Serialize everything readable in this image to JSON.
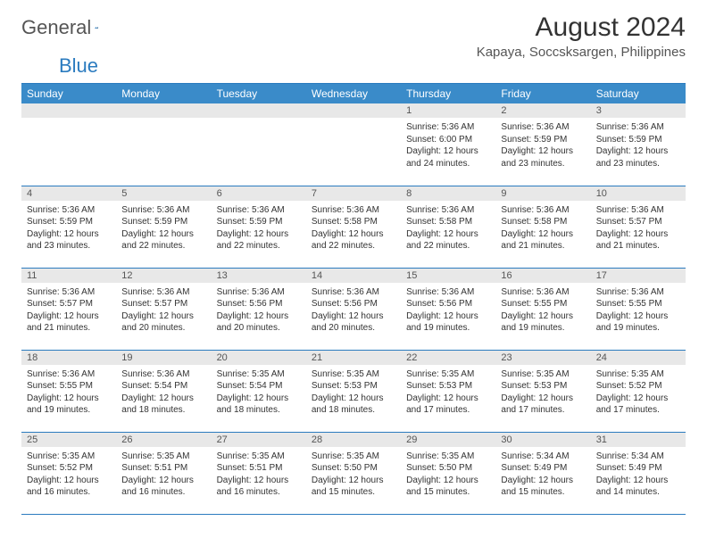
{
  "logo": {
    "text1": "General",
    "text2": "Blue"
  },
  "title": "August 2024",
  "location": "Kapaya, Soccsksargen, Philippines",
  "colors": {
    "header_bg": "#3a8bc9",
    "border": "#2b7bbf",
    "daynum_bg": "#e8e8e8",
    "text": "#333333"
  },
  "weekdays": [
    "Sunday",
    "Monday",
    "Tuesday",
    "Wednesday",
    "Thursday",
    "Friday",
    "Saturday"
  ],
  "weeks": [
    [
      null,
      null,
      null,
      null,
      {
        "n": "1",
        "sr": "Sunrise: 5:36 AM",
        "ss": "Sunset: 6:00 PM",
        "dl": "Daylight: 12 hours and 24 minutes."
      },
      {
        "n": "2",
        "sr": "Sunrise: 5:36 AM",
        "ss": "Sunset: 5:59 PM",
        "dl": "Daylight: 12 hours and 23 minutes."
      },
      {
        "n": "3",
        "sr": "Sunrise: 5:36 AM",
        "ss": "Sunset: 5:59 PM",
        "dl": "Daylight: 12 hours and 23 minutes."
      }
    ],
    [
      {
        "n": "4",
        "sr": "Sunrise: 5:36 AM",
        "ss": "Sunset: 5:59 PM",
        "dl": "Daylight: 12 hours and 23 minutes."
      },
      {
        "n": "5",
        "sr": "Sunrise: 5:36 AM",
        "ss": "Sunset: 5:59 PM",
        "dl": "Daylight: 12 hours and 22 minutes."
      },
      {
        "n": "6",
        "sr": "Sunrise: 5:36 AM",
        "ss": "Sunset: 5:59 PM",
        "dl": "Daylight: 12 hours and 22 minutes."
      },
      {
        "n": "7",
        "sr": "Sunrise: 5:36 AM",
        "ss": "Sunset: 5:58 PM",
        "dl": "Daylight: 12 hours and 22 minutes."
      },
      {
        "n": "8",
        "sr": "Sunrise: 5:36 AM",
        "ss": "Sunset: 5:58 PM",
        "dl": "Daylight: 12 hours and 22 minutes."
      },
      {
        "n": "9",
        "sr": "Sunrise: 5:36 AM",
        "ss": "Sunset: 5:58 PM",
        "dl": "Daylight: 12 hours and 21 minutes."
      },
      {
        "n": "10",
        "sr": "Sunrise: 5:36 AM",
        "ss": "Sunset: 5:57 PM",
        "dl": "Daylight: 12 hours and 21 minutes."
      }
    ],
    [
      {
        "n": "11",
        "sr": "Sunrise: 5:36 AM",
        "ss": "Sunset: 5:57 PM",
        "dl": "Daylight: 12 hours and 21 minutes."
      },
      {
        "n": "12",
        "sr": "Sunrise: 5:36 AM",
        "ss": "Sunset: 5:57 PM",
        "dl": "Daylight: 12 hours and 20 minutes."
      },
      {
        "n": "13",
        "sr": "Sunrise: 5:36 AM",
        "ss": "Sunset: 5:56 PM",
        "dl": "Daylight: 12 hours and 20 minutes."
      },
      {
        "n": "14",
        "sr": "Sunrise: 5:36 AM",
        "ss": "Sunset: 5:56 PM",
        "dl": "Daylight: 12 hours and 20 minutes."
      },
      {
        "n": "15",
        "sr": "Sunrise: 5:36 AM",
        "ss": "Sunset: 5:56 PM",
        "dl": "Daylight: 12 hours and 19 minutes."
      },
      {
        "n": "16",
        "sr": "Sunrise: 5:36 AM",
        "ss": "Sunset: 5:55 PM",
        "dl": "Daylight: 12 hours and 19 minutes."
      },
      {
        "n": "17",
        "sr": "Sunrise: 5:36 AM",
        "ss": "Sunset: 5:55 PM",
        "dl": "Daylight: 12 hours and 19 minutes."
      }
    ],
    [
      {
        "n": "18",
        "sr": "Sunrise: 5:36 AM",
        "ss": "Sunset: 5:55 PM",
        "dl": "Daylight: 12 hours and 19 minutes."
      },
      {
        "n": "19",
        "sr": "Sunrise: 5:36 AM",
        "ss": "Sunset: 5:54 PM",
        "dl": "Daylight: 12 hours and 18 minutes."
      },
      {
        "n": "20",
        "sr": "Sunrise: 5:35 AM",
        "ss": "Sunset: 5:54 PM",
        "dl": "Daylight: 12 hours and 18 minutes."
      },
      {
        "n": "21",
        "sr": "Sunrise: 5:35 AM",
        "ss": "Sunset: 5:53 PM",
        "dl": "Daylight: 12 hours and 18 minutes."
      },
      {
        "n": "22",
        "sr": "Sunrise: 5:35 AM",
        "ss": "Sunset: 5:53 PM",
        "dl": "Daylight: 12 hours and 17 minutes."
      },
      {
        "n": "23",
        "sr": "Sunrise: 5:35 AM",
        "ss": "Sunset: 5:53 PM",
        "dl": "Daylight: 12 hours and 17 minutes."
      },
      {
        "n": "24",
        "sr": "Sunrise: 5:35 AM",
        "ss": "Sunset: 5:52 PM",
        "dl": "Daylight: 12 hours and 17 minutes."
      }
    ],
    [
      {
        "n": "25",
        "sr": "Sunrise: 5:35 AM",
        "ss": "Sunset: 5:52 PM",
        "dl": "Daylight: 12 hours and 16 minutes."
      },
      {
        "n": "26",
        "sr": "Sunrise: 5:35 AM",
        "ss": "Sunset: 5:51 PM",
        "dl": "Daylight: 12 hours and 16 minutes."
      },
      {
        "n": "27",
        "sr": "Sunrise: 5:35 AM",
        "ss": "Sunset: 5:51 PM",
        "dl": "Daylight: 12 hours and 16 minutes."
      },
      {
        "n": "28",
        "sr": "Sunrise: 5:35 AM",
        "ss": "Sunset: 5:50 PM",
        "dl": "Daylight: 12 hours and 15 minutes."
      },
      {
        "n": "29",
        "sr": "Sunrise: 5:35 AM",
        "ss": "Sunset: 5:50 PM",
        "dl": "Daylight: 12 hours and 15 minutes."
      },
      {
        "n": "30",
        "sr": "Sunrise: 5:34 AM",
        "ss": "Sunset: 5:49 PM",
        "dl": "Daylight: 12 hours and 15 minutes."
      },
      {
        "n": "31",
        "sr": "Sunrise: 5:34 AM",
        "ss": "Sunset: 5:49 PM",
        "dl": "Daylight: 12 hours and 14 minutes."
      }
    ]
  ]
}
